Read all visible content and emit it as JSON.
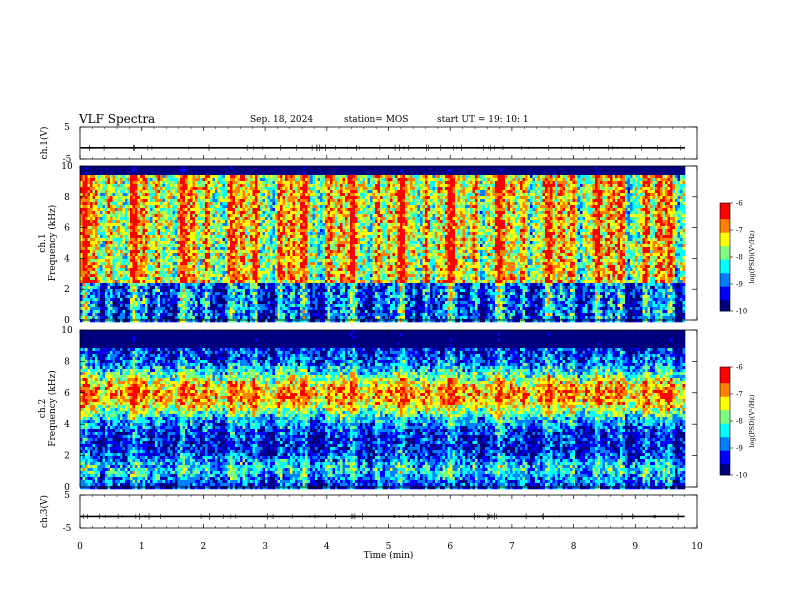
{
  "header": {
    "title": "VLF Spectra",
    "date": "Sep. 18, 2024",
    "station": "station= MOS",
    "start": "start  UT =  19: 10: 1"
  },
  "chart_data": [
    {
      "type": "line",
      "name": "ch1-waveform",
      "ylabel": "ch.1(V)",
      "ylim": [
        -5,
        5
      ],
      "yticks": [
        "5",
        "-5"
      ],
      "x": [
        0,
        9.8
      ],
      "values": [
        -1.5,
        -1.5
      ]
    },
    {
      "type": "heatmap",
      "name": "ch1-spectrogram",
      "ylabel": "ch.1\nFrequency (kHz)",
      "ylim": [
        0,
        10
      ],
      "yticks": [
        "0",
        "2",
        "4",
        "6",
        "8",
        "10"
      ],
      "xlim": [
        0,
        10
      ],
      "colorbar": {
        "label": "log(PSD)(V²/Hz)",
        "ticks": [
          "-6",
          "-7",
          "-8",
          "-9",
          "-10"
        ],
        "range": [
          -10,
          -6
        ]
      }
    },
    {
      "type": "heatmap",
      "name": "ch2-spectrogram",
      "ylabel": "ch.2\nFrequency (kHz)",
      "ylim": [
        0,
        10
      ],
      "yticks": [
        "0",
        "2",
        "4",
        "6",
        "8",
        "10"
      ],
      "xlim": [
        0,
        10
      ],
      "colorbar": {
        "label": "log(PSD)(V²/Hz)",
        "ticks": [
          "-6",
          "-7",
          "-8",
          "-9",
          "-10"
        ],
        "range": [
          -10,
          -6
        ]
      }
    },
    {
      "type": "line",
      "name": "ch3-waveform",
      "ylabel": "ch.3(V)",
      "ylim": [
        -5,
        5
      ],
      "yticks": [
        "5",
        "-5"
      ],
      "x": [
        0,
        9.8
      ],
      "values": [
        -1.5,
        -1.5
      ]
    }
  ],
  "xaxis": {
    "label": "Time  (min)",
    "range": [
      0,
      10
    ],
    "ticks": [
      "0",
      "1",
      "2",
      "3",
      "4",
      "5",
      "6",
      "7",
      "8",
      "9",
      "10"
    ]
  },
  "colors": {
    "jet": [
      "#00007f",
      "#0000ff",
      "#007fff",
      "#00ffff",
      "#7fff7f",
      "#ffff00",
      "#ff7f00",
      "#ff0000",
      "#ffffff"
    ]
  }
}
